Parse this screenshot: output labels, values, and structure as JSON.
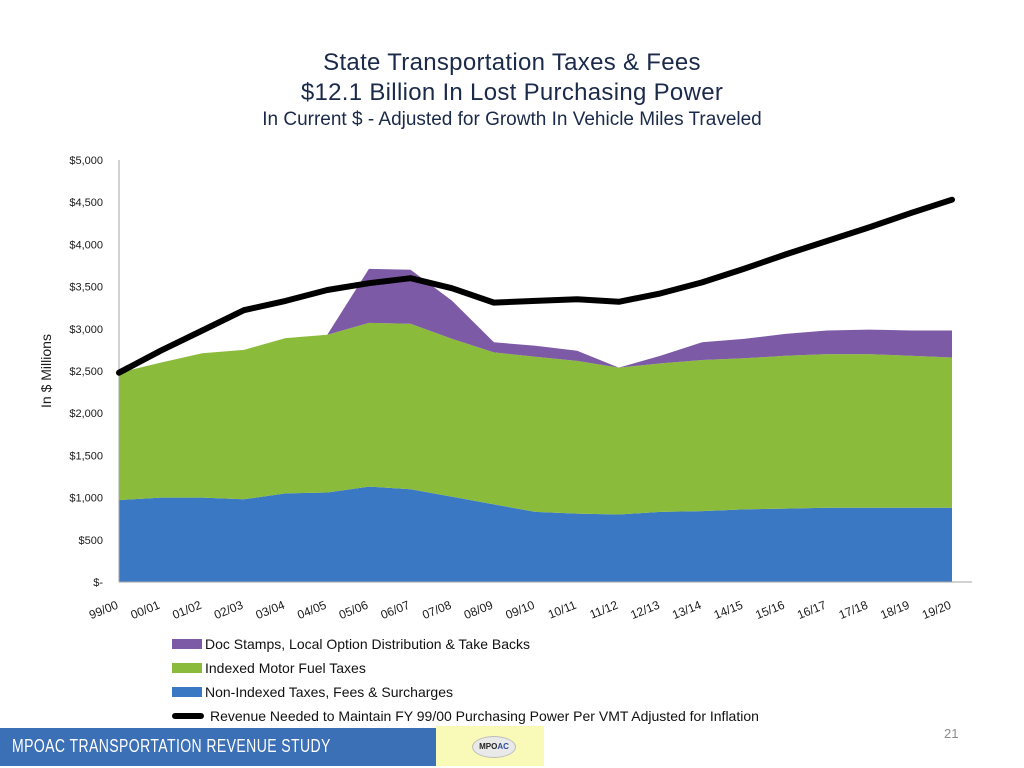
{
  "title": {
    "line1": "State Transportation Taxes & Fees",
    "line2": "$12.1 Billion In Lost Purchasing Power",
    "line3": "In Current $ - Adjusted for Growth In Vehicle Miles Traveled"
  },
  "footer": {
    "study_label": "MPOAC  TRANSPORTATION REVENUE STUDY",
    "logo_text_main": "MPO",
    "logo_text_accent": "AC",
    "page_number": "21"
  },
  "colors": {
    "non_indexed": "#3a78c4",
    "indexed": "#8bbb3a",
    "doc_stamps": "#7d5aa6",
    "revenue_line": "#000000",
    "axis": "#a6a6a6"
  },
  "chart_data": {
    "type": "area",
    "stacked": true,
    "ylabel": "In $ Millions",
    "xlabel": "",
    "ylim": [
      0,
      5000
    ],
    "y_ticks": [
      0,
      500,
      1000,
      1500,
      2000,
      2500,
      3000,
      3500,
      4000,
      4500,
      5000
    ],
    "y_tick_labels": [
      "$-",
      "$500",
      "$1,000",
      "$1,500",
      "$2,000",
      "$2,500",
      "$3,000",
      "$3,500",
      "$4,000",
      "$4,500",
      "$5,000"
    ],
    "categories": [
      "99/00",
      "00/01",
      "01/02",
      "02/03",
      "03/04",
      "04/05",
      "05/06",
      "06/07",
      "07/08",
      "08/09",
      "09/10",
      "10/11",
      "11/12",
      "12/13",
      "13/14",
      "14/15",
      "15/16",
      "16/17",
      "17/18",
      "18/19",
      "19/20"
    ],
    "series": [
      {
        "name": "Non-Indexed Taxes, Fees & Surcharges",
        "values": [
          970,
          1000,
          1000,
          980,
          1050,
          1060,
          1130,
          1100,
          1010,
          920,
          830,
          810,
          800,
          830,
          840,
          860,
          870,
          880,
          880,
          880,
          880
        ]
      },
      {
        "name": "Indexed Motor Fuel Taxes",
        "values": [
          1510,
          1600,
          1710,
          1770,
          1840,
          1870,
          1940,
          1960,
          1870,
          1800,
          1840,
          1810,
          1740,
          1760,
          1790,
          1790,
          1810,
          1820,
          1820,
          1800,
          1780
        ]
      },
      {
        "name": "Doc Stamps, Local Option Distribution & Take Backs",
        "values": [
          0,
          0,
          0,
          0,
          0,
          0,
          640,
          640,
          450,
          120,
          130,
          120,
          0,
          90,
          210,
          230,
          260,
          280,
          290,
          300,
          320
        ]
      },
      {
        "name": "Revenue Needed to Maintain FY 99/00 Purchasing Power Per VMT Adjusted for Inflation",
        "type": "line",
        "values": [
          2480,
          2740,
          2980,
          3220,
          3330,
          3460,
          3540,
          3600,
          3480,
          3310,
          3330,
          3350,
          3320,
          3420,
          3550,
          3710,
          3880,
          4040,
          4200,
          4370,
          4530
        ]
      }
    ]
  }
}
